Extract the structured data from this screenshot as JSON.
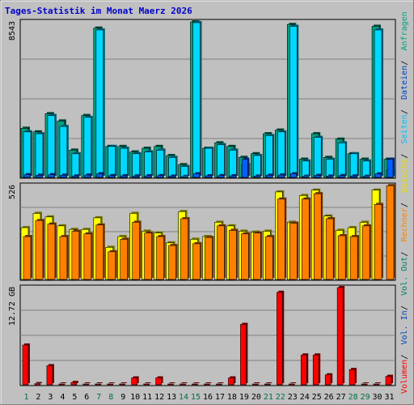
{
  "title": "Tages-Statistik im Monat Maerz 2026",
  "colors": {
    "background": "#c0c0c0",
    "plot_bg": "#c0c0c0",
    "title": "#0000cc",
    "anfragen": "#00a080",
    "dateien": "#00d8ff",
    "seiten": "#0060ff",
    "besuche": "#ffff00",
    "rechner": "#ff8000",
    "volumen": "#ff0000",
    "weekend": "#007040",
    "weekday": "#000000",
    "sep_slash": "#000000"
  },
  "chart_data": [
    {
      "type": "bar",
      "name": "hits-panel",
      "top_label": "8543",
      "ymax": 8543,
      "categories": [
        "1",
        "2",
        "3",
        "4",
        "5",
        "6",
        "7",
        "8",
        "9",
        "10",
        "11",
        "12",
        "13",
        "14",
        "15",
        "16",
        "17",
        "18",
        "19",
        "20",
        "21",
        "22",
        "23",
        "24",
        "25",
        "26",
        "27",
        "28",
        "29",
        "30",
        "31"
      ],
      "series": [
        {
          "name": "Anfragen",
          "color_key": "anfragen",
          "values": [
            2700,
            2500,
            3500,
            3100,
            1500,
            3400,
            8200,
            1700,
            1700,
            1400,
            1600,
            1700,
            1200,
            700,
            8600,
            1600,
            1900,
            1700,
            1100,
            1300,
            2400,
            2600,
            8400,
            1000,
            2400,
            1100,
            2100,
            1300,
            1000,
            8300,
            1000
          ]
        },
        {
          "name": "Dateien",
          "color_key": "dateien",
          "values": [
            2500,
            2400,
            3400,
            2800,
            1300,
            3300,
            8100,
            1700,
            1600,
            1300,
            1400,
            1500,
            1100,
            600,
            8500,
            1600,
            1800,
            1500,
            700,
            1200,
            2300,
            2500,
            8300,
            900,
            2200,
            1000,
            1900,
            1300,
            900,
            8100,
            400
          ]
        },
        {
          "name": "Seiten",
          "color_key": "seiten",
          "values": [
            150,
            120,
            150,
            120,
            80,
            130,
            200,
            100,
            90,
            80,
            90,
            100,
            70,
            50,
            200,
            90,
            100,
            90,
            1000,
            70,
            120,
            130,
            200,
            60,
            110,
            70,
            100,
            80,
            60,
            190,
            1000
          ]
        }
      ]
    },
    {
      "type": "bar",
      "name": "visits-panel",
      "top_label": "526",
      "ymax": 526,
      "categories": [
        "1",
        "2",
        "3",
        "4",
        "5",
        "6",
        "7",
        "8",
        "9",
        "10",
        "11",
        "12",
        "13",
        "14",
        "15",
        "16",
        "17",
        "18",
        "19",
        "20",
        "21",
        "22",
        "23",
        "24",
        "25",
        "26",
        "27",
        "28",
        "29",
        "30",
        "31"
      ],
      "series": [
        {
          "name": "Besuche",
          "color_key": "besuche",
          "values": [
            290,
            370,
            350,
            300,
            280,
            280,
            345,
            180,
            240,
            370,
            270,
            260,
            205,
            380,
            225,
            240,
            320,
            300,
            270,
            265,
            270,
            490,
            320,
            470,
            500,
            355,
            275,
            290,
            320,
            500,
            0
          ]
        },
        {
          "name": "Rechner",
          "color_key": "rechner",
          "values": [
            240,
            330,
            310,
            240,
            270,
            255,
            305,
            155,
            225,
            320,
            260,
            240,
            190,
            340,
            200,
            235,
            300,
            275,
            255,
            260,
            240,
            450,
            315,
            450,
            480,
            340,
            245,
            240,
            300,
            420,
            525
          ]
        }
      ]
    },
    {
      "type": "bar",
      "name": "volume-panel",
      "top_label": "12.72 GB",
      "ymax": 12.72,
      "categories": [
        "1",
        "2",
        "3",
        "4",
        "5",
        "6",
        "7",
        "8",
        "9",
        "10",
        "11",
        "12",
        "13",
        "14",
        "15",
        "16",
        "17",
        "18",
        "19",
        "20",
        "21",
        "22",
        "23",
        "24",
        "25",
        "26",
        "27",
        "28",
        "29",
        "30",
        "31"
      ],
      "series": [
        {
          "name": "Volumen",
          "color_key": "volumen",
          "values": [
            5.2,
            0.15,
            2.5,
            0.1,
            0.3,
            0.1,
            0.1,
            0.1,
            0.1,
            0.9,
            0.1,
            0.9,
            0.1,
            0.1,
            0.1,
            0.1,
            0.1,
            0.9,
            7.9,
            0.1,
            0.1,
            12.1,
            0.1,
            3.9,
            3.9,
            1.3,
            12.9,
            2.0,
            0.1,
            0.1,
            1.1
          ]
        }
      ]
    }
  ],
  "legend_top": [
    "Anfragen",
    "/",
    "Dateien",
    "/",
    "Seiten",
    "/",
    "Besuche"
  ],
  "legend_mid": [
    "Rechner",
    "/",
    "Out",
    "/",
    "Vol."
  ],
  "legend_bot": [
    "In",
    "/",
    "Volumen"
  ],
  "weekend_days": [
    1,
    7,
    8,
    14,
    15,
    21,
    22,
    28,
    29
  ]
}
